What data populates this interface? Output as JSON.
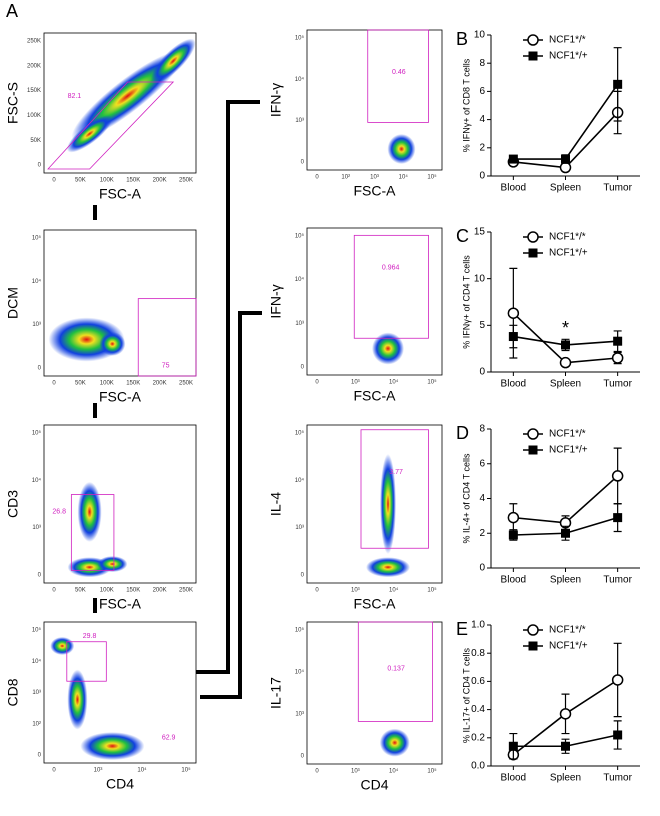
{
  "figure_label": "A",
  "flow_plots": [
    {
      "ylabel": "FSC-S",
      "xlabel": "FSC-A",
      "gates": [
        "82.1"
      ],
      "yticks": [
        "0",
        "50K",
        "100K",
        "150K",
        "200K",
        "250K"
      ],
      "xticks": [
        "0",
        "50K",
        "100K",
        "150K",
        "200K",
        "250K"
      ]
    },
    {
      "ylabel": "DCM",
      "xlabel": "FSC-A",
      "gates": [
        "75"
      ],
      "yticks": [
        "0",
        "10³",
        "10⁴",
        "10⁵"
      ],
      "xticks": [
        "0",
        "50K",
        "100K",
        "150K",
        "200K",
        "250K"
      ]
    },
    {
      "ylabel": "CD3",
      "xlabel": "FSC-A",
      "gates": [
        "26.8"
      ],
      "yticks": [
        "0",
        "10³",
        "10⁴",
        "10⁵"
      ],
      "xticks": [
        "0",
        "50K",
        "100K",
        "150K",
        "200K",
        "250K"
      ]
    },
    {
      "ylabel": "CD8",
      "xlabel": "CD4",
      "gates": [
        "29.8",
        "62.9"
      ],
      "yticks": [
        "0",
        "10²",
        "10³",
        "10⁴",
        "10⁵"
      ],
      "xticks": [
        "0",
        "10³",
        "10⁴",
        "10⁵"
      ]
    },
    {
      "ylabel": "IFN-γ",
      "xlabel": "FSC-A",
      "gates": [
        "0.46"
      ],
      "yticks": [
        "0",
        "10³",
        "10⁴",
        "10⁵"
      ],
      "xticks": [
        "0",
        "10²",
        "10³",
        "10⁴",
        "10⁵"
      ]
    },
    {
      "ylabel": "IFN-γ",
      "xlabel": "FSC-A",
      "gates": [
        "0.964"
      ],
      "yticks": [
        "0",
        "10³",
        "10⁴",
        "10⁵"
      ],
      "xticks": [
        "0",
        "10³",
        "10⁴",
        "10⁵"
      ]
    },
    {
      "ylabel": "IL-4",
      "xlabel": "FSC-A",
      "gates": [
        "3.77"
      ],
      "yticks": [
        "0",
        "10³",
        "10⁴",
        "10⁵"
      ],
      "xticks": [
        "0",
        "10³",
        "10⁴",
        "10⁵"
      ]
    },
    {
      "ylabel": "IL-17",
      "xlabel": "CD4",
      "gates": [
        "0.137"
      ],
      "yticks": [
        "0",
        "10³",
        "10⁴",
        "10⁵"
      ],
      "xticks": [
        "0",
        "10³",
        "10⁴",
        "10⁵"
      ]
    }
  ],
  "chart_data": [
    {
      "type": "line",
      "label": "B",
      "ylabel": "% IFNγ+ of CD8 T cells",
      "categories": [
        "Blood",
        "Spleen",
        "Tumor"
      ],
      "ylim": [
        0,
        10
      ],
      "yticks": [
        0,
        2,
        4,
        6,
        8,
        10
      ],
      "series": [
        {
          "name": "NCF1*/*",
          "color": "#000000",
          "marker": "circle",
          "values": [
            1.0,
            0.6,
            4.5
          ],
          "errors": [
            0.2,
            0.1,
            1.5
          ]
        },
        {
          "name": "NCF1*/+",
          "color": "#000000",
          "marker": "square",
          "values": [
            1.2,
            1.2,
            6.5
          ],
          "errors": [
            0.2,
            0.3,
            2.6
          ]
        }
      ]
    },
    {
      "type": "line",
      "label": "C",
      "ylabel": "% IFNγ+ of CD4 T cells",
      "categories": [
        "Blood",
        "Spleen",
        "Tumor"
      ],
      "ylim": [
        0,
        15
      ],
      "yticks": [
        0,
        5,
        10,
        15
      ],
      "annotations": [
        {
          "text": "*",
          "category": "Spleen"
        }
      ],
      "series": [
        {
          "name": "NCF1*/*",
          "color": "#000000",
          "marker": "circle",
          "values": [
            6.3,
            1.0,
            1.5
          ],
          "errors": [
            4.8,
            0.2,
            0.6
          ]
        },
        {
          "name": "NCF1*/+",
          "color": "#000000",
          "marker": "square",
          "values": [
            3.8,
            2.9,
            3.3
          ],
          "errors": [
            1.2,
            0.6,
            1.1
          ]
        }
      ]
    },
    {
      "type": "line",
      "label": "D",
      "ylabel": "% IL-4+ of CD4 T cells",
      "categories": [
        "Blood",
        "Spleen",
        "Tumor"
      ],
      "ylim": [
        0,
        8
      ],
      "yticks": [
        0,
        2,
        4,
        6,
        8
      ],
      "series": [
        {
          "name": "NCF1*/*",
          "color": "#000000",
          "marker": "circle",
          "values": [
            2.9,
            2.6,
            5.3
          ],
          "errors": [
            0.8,
            0.4,
            1.6
          ]
        },
        {
          "name": "NCF1*/+",
          "color": "#000000",
          "marker": "square",
          "values": [
            1.9,
            2.0,
            2.9
          ],
          "errors": [
            0.3,
            0.4,
            0.8
          ]
        }
      ]
    },
    {
      "type": "line",
      "label": "E",
      "ylabel": "% IL-17+ of CD4 T cells",
      "categories": [
        "Blood",
        "Spleen",
        "Tumor"
      ],
      "ylim": [
        0,
        1.0
      ],
      "yticks": [
        {
          "value": 0,
          "label": "0.0"
        },
        0.2,
        0.4,
        0.6,
        0.8,
        {
          "value": 1.0,
          "label": "1.0"
        }
      ],
      "series": [
        {
          "name": "NCF1*/*",
          "color": "#000000",
          "marker": "circle",
          "values": [
            0.08,
            0.37,
            0.61
          ],
          "errors": [
            0.03,
            0.14,
            0.26
          ]
        },
        {
          "name": "NCF1*/+",
          "color": "#000000",
          "marker": "square",
          "values": [
            0.14,
            0.14,
            0.22
          ],
          "errors": [
            0.09,
            0.05,
            0.1
          ]
        }
      ]
    }
  ]
}
